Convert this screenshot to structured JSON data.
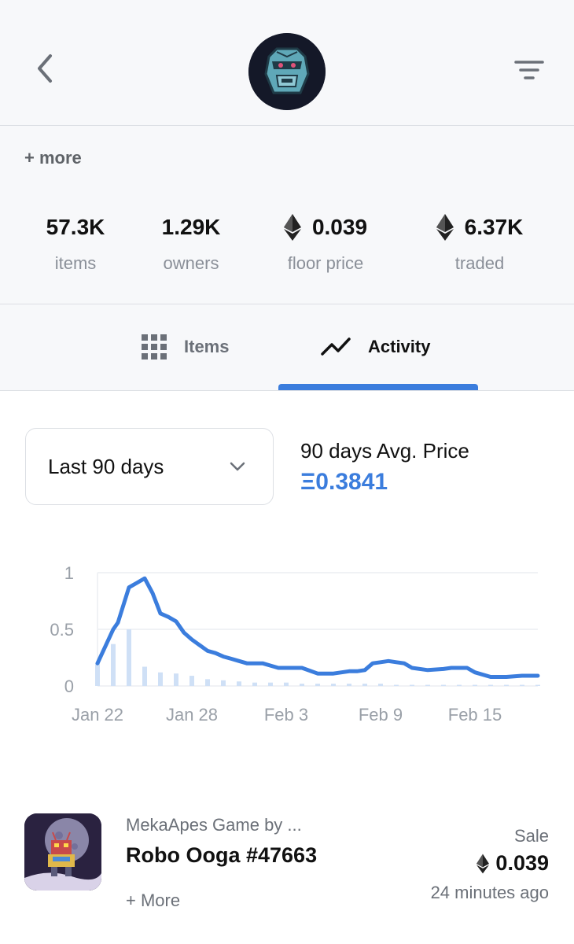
{
  "header": {
    "back_icon": "chevron-left-icon",
    "filter_icon": "filter-lines-icon",
    "avatar_icon": "gorilla-robot-avatar"
  },
  "collection": {
    "more_label": "+ more",
    "stats": [
      {
        "value": "57.3K",
        "label": "items",
        "eth": false
      },
      {
        "value": "1.29K",
        "label": "owners",
        "eth": false
      },
      {
        "value": "0.039",
        "label": "floor price",
        "eth": true
      },
      {
        "value": "6.37K",
        "label": "traded",
        "eth": true
      }
    ]
  },
  "tabs": [
    {
      "label": "Items",
      "icon": "grid-icon",
      "active": false
    },
    {
      "label": "Activity",
      "icon": "trend-line-icon",
      "active": true
    }
  ],
  "activity": {
    "range_select": "Last 90 days",
    "avg_label": "90 days Avg. Price",
    "avg_value": "Ξ0.3841"
  },
  "chart_data": {
    "type": "line",
    "title": "",
    "xlabel": "",
    "ylabel": "",
    "ylim": [
      0,
      1
    ],
    "y_ticks": [
      "0",
      "0.5",
      "1"
    ],
    "x_ticks": [
      "Jan 22",
      "Jan 28",
      "Feb 3",
      "Feb 9",
      "Feb 15"
    ],
    "x_tick_days": [
      0,
      6,
      12,
      18,
      24
    ],
    "grid": true,
    "line_color": "#3b7ddd",
    "bar_color": "#cfe0f6",
    "series": [
      {
        "x": [
          0,
          1,
          1.3,
          2,
          2.5,
          3,
          3.5,
          4,
          4.5,
          5,
          5.5,
          6,
          6.5,
          7,
          7.5,
          8,
          8.5,
          9,
          9.5,
          10,
          10.5,
          11,
          11.5,
          12,
          13,
          14,
          15,
          16,
          16.5,
          17,
          17.5,
          18,
          18.5,
          19,
          19.5,
          20,
          21,
          22,
          22.5,
          23,
          23.5,
          24,
          25,
          26,
          27,
          28
        ],
        "y": [
          0.2,
          0.5,
          0.56,
          0.87,
          0.91,
          0.95,
          0.82,
          0.64,
          0.61,
          0.57,
          0.47,
          0.41,
          0.36,
          0.31,
          0.29,
          0.26,
          0.24,
          0.22,
          0.2,
          0.2,
          0.2,
          0.18,
          0.16,
          0.16,
          0.16,
          0.11,
          0.11,
          0.13,
          0.13,
          0.14,
          0.2,
          0.21,
          0.22,
          0.21,
          0.2,
          0.16,
          0.14,
          0.15,
          0.16,
          0.16,
          0.16,
          0.12,
          0.08,
          0.08,
          0.09,
          0.09
        ]
      },
      {
        "type": "bar",
        "x": [
          0,
          1,
          2,
          3,
          4,
          5,
          6,
          7,
          8,
          9,
          10,
          11,
          12,
          13,
          14,
          15,
          16,
          17,
          18,
          19,
          20,
          21,
          22,
          23,
          24,
          25,
          26,
          27,
          28
        ],
        "y": [
          0.2,
          0.37,
          0.5,
          0.17,
          0.12,
          0.11,
          0.09,
          0.06,
          0.05,
          0.04,
          0.03,
          0.03,
          0.03,
          0.02,
          0.02,
          0.02,
          0.02,
          0.02,
          0.02,
          0.01,
          0.01,
          0.01,
          0.01,
          0.01,
          0.01,
          0.01,
          0.01,
          0.01,
          0.01
        ]
      }
    ]
  },
  "sale": {
    "collection": "MekaApes Game by ...",
    "name": "Robo Ooga #47663",
    "more": "+ More",
    "type": "Sale",
    "price": "0.039",
    "time": "24 minutes ago"
  }
}
